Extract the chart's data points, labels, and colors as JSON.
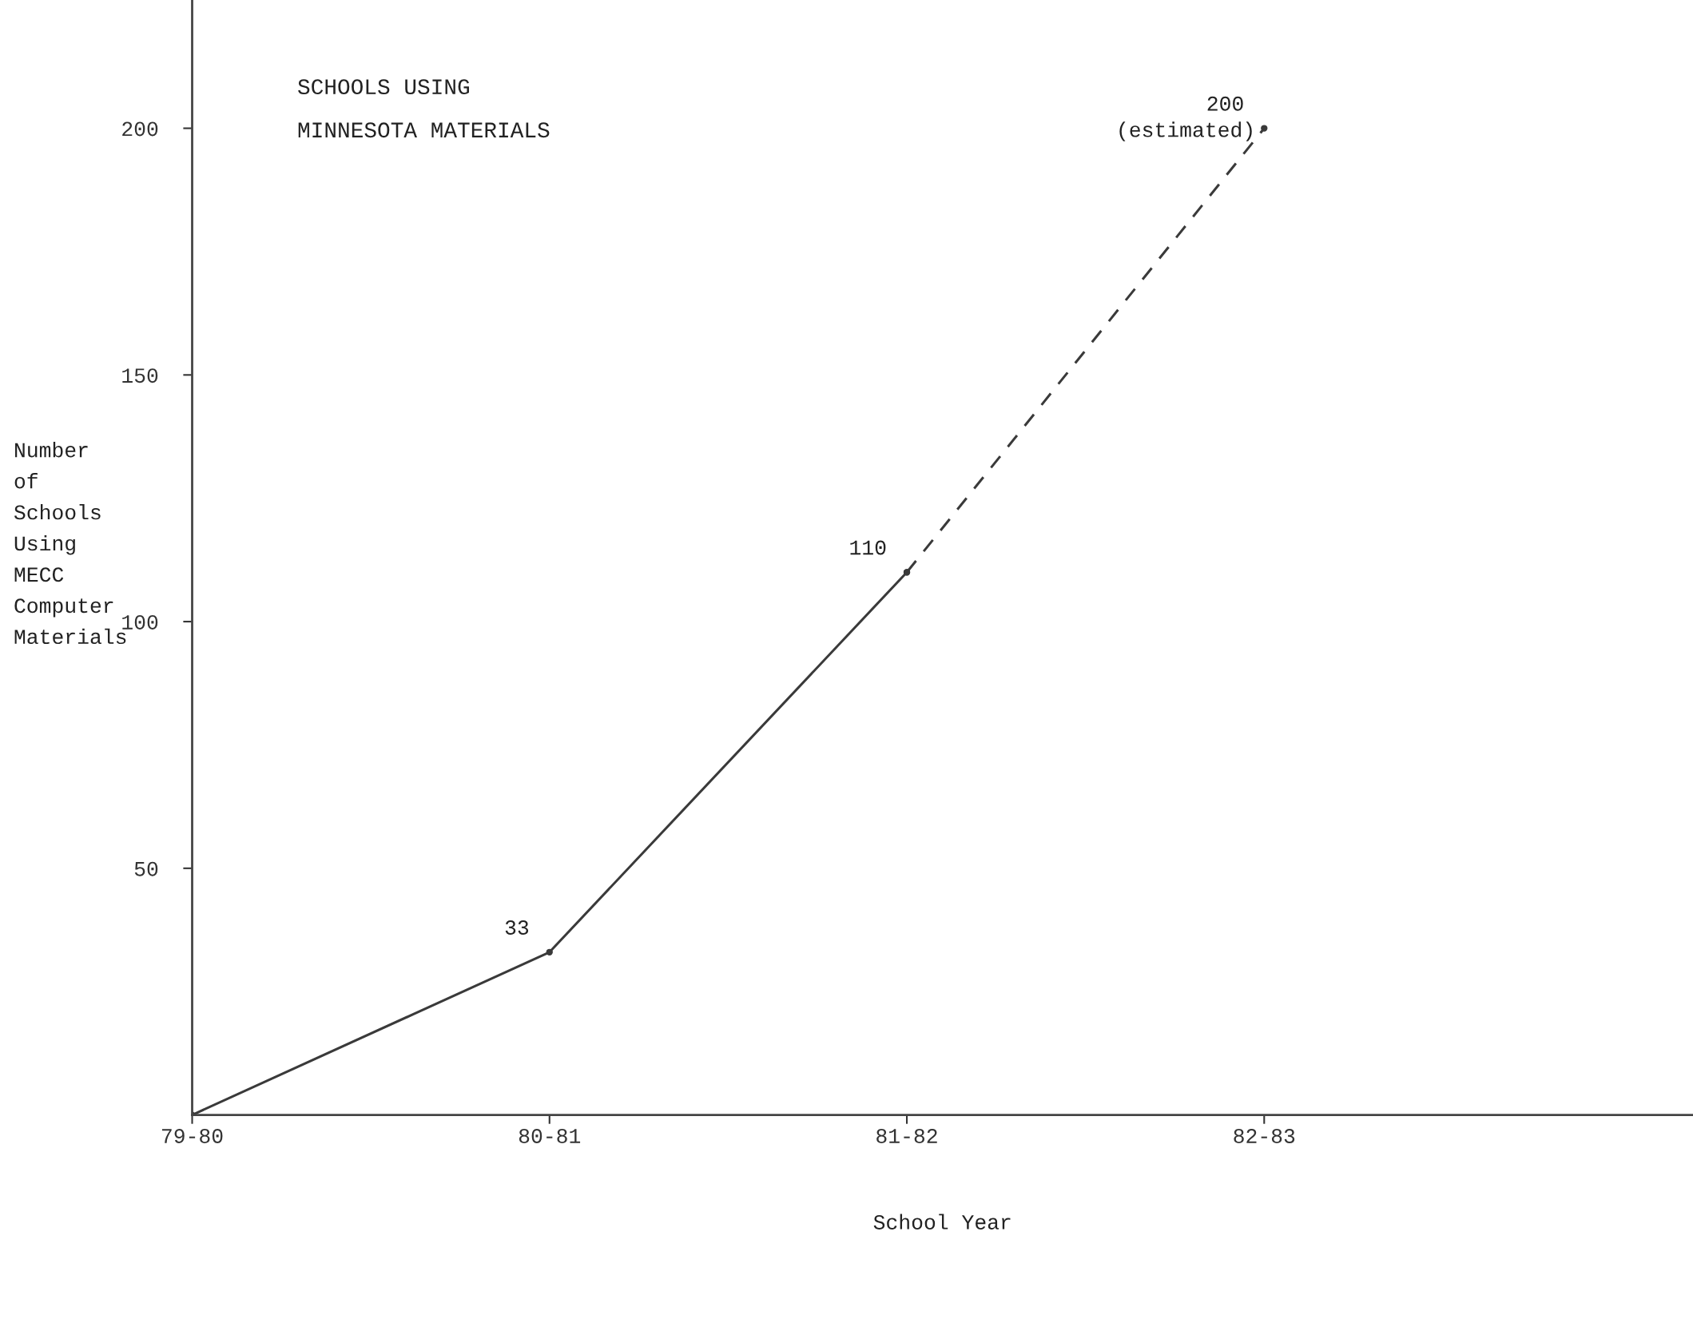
{
  "chart_data": {
    "type": "line",
    "title": "SCHOOLS USING\nMINNESOTA MATERIALS",
    "xlabel": "School Year",
    "ylabel": "Number\nof\nSchools\nUsing\nMECC\nComputer\nMaterials",
    "categories": [
      "79-80",
      "80-81",
      "81-82",
      "82-83"
    ],
    "series": [
      {
        "color": "#3a3a3a",
        "values": [
          0,
          33,
          110,
          null
        ],
        "line_style": "solid",
        "value_labels": [
          null,
          "33",
          "110",
          null
        ]
      },
      {
        "color": "#3a3a3a",
        "values": [
          null,
          null,
          110,
          200
        ],
        "line_style": "dashed",
        "value_labels": [
          null,
          null,
          null,
          "200"
        ]
      }
    ],
    "annotations": [
      {
        "text": "(estimated)",
        "x": "82-83",
        "y": 200
      }
    ],
    "ylim": [
      0,
      226
    ],
    "yticks": [
      50,
      100,
      150,
      200
    ],
    "marker": "circle",
    "grid": false,
    "legend": false
  }
}
